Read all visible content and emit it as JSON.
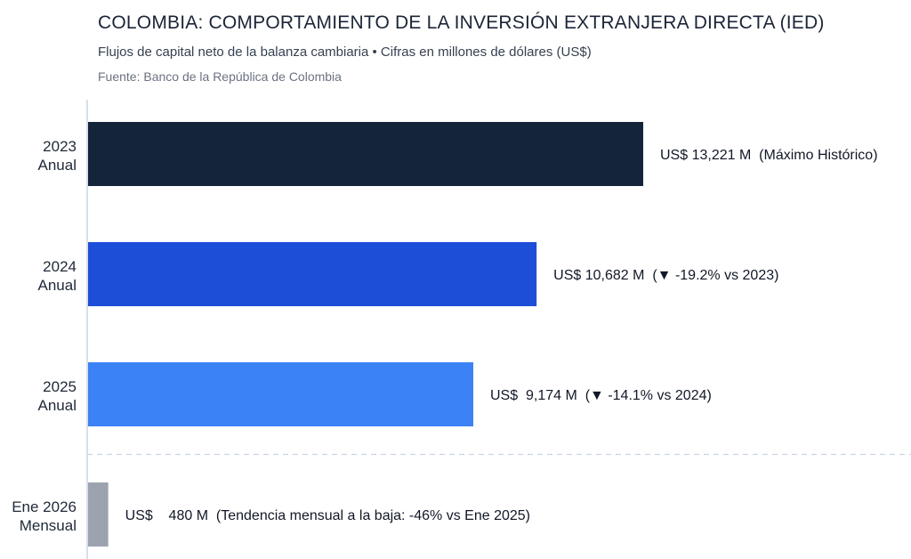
{
  "header": {
    "title": "COLOMBIA: COMPORTAMIENTO DE LA INVERSIÓN EXTRANJERA DIRECTA (IED)",
    "subtitle": "Flujos de capital neto de la balanza cambiaria • Cifras en millones de dólares (US$)",
    "source": "Fuente: Banco de la República de Colombia"
  },
  "chart_data": {
    "type": "bar",
    "orientation": "horizontal",
    "grid": false,
    "categories": [
      [
        "2023",
        "Anual"
      ],
      [
        "2024",
        "Anual"
      ],
      [
        "2025",
        "Anual"
      ],
      [
        "Ene 2026",
        "Mensual"
      ]
    ],
    "values": [
      13221,
      10682,
      9174,
      480
    ],
    "data_labels": [
      "US$ 13,221 M  (Máximo Histórico)",
      "US$ 10,682 M  (▼ -19.2% vs 2023)",
      "US$  9,174 M  (▼ -14.1% vs 2024)",
      "US$    480 M  (Tendencia mensual a la baja: -46% vs Ene 2025)"
    ],
    "colors": [
      "#14243b",
      "#1d4ed8",
      "#3b82f6",
      "#9ca3af"
    ],
    "xlim": [
      0,
      15000
    ],
    "separator_before_index": 3
  }
}
